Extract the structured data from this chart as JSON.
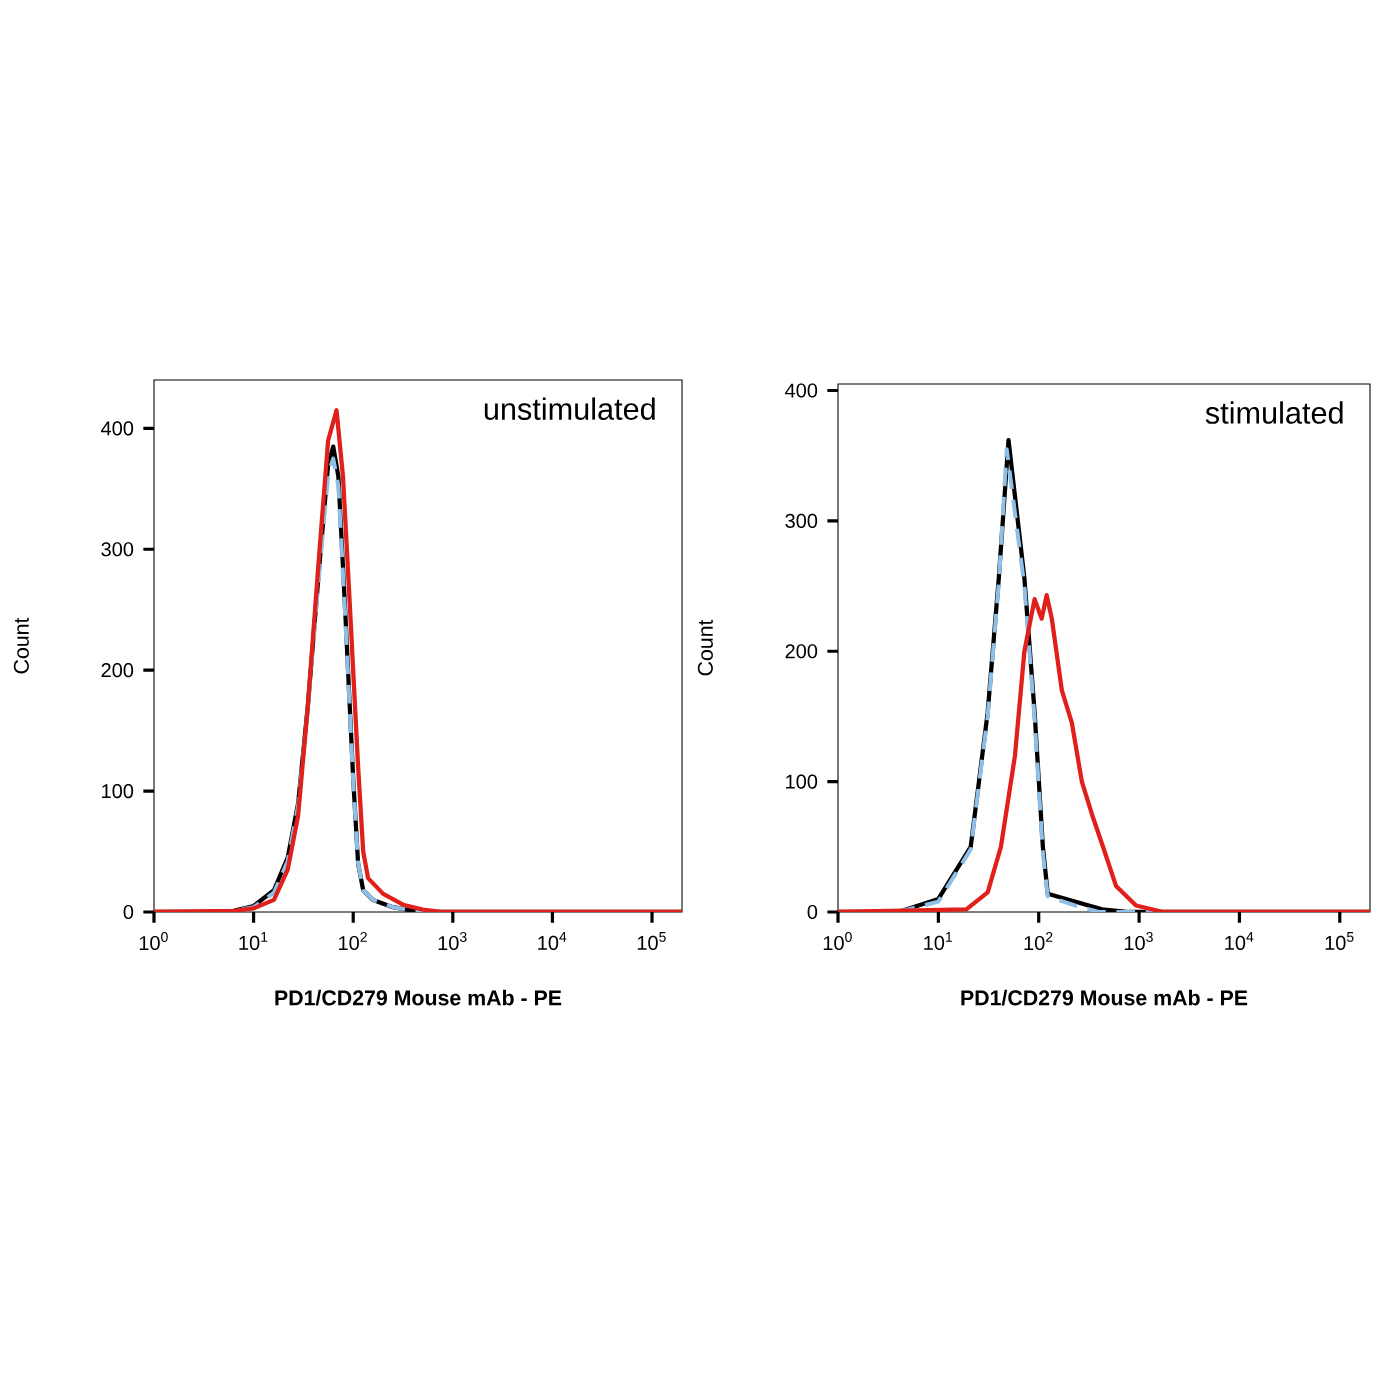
{
  "chart_data": [
    {
      "type": "line",
      "xlabel": "PD1/CD279 Mouse mAb - PE",
      "ylabel": "Count",
      "annotations": [
        "unstimulated"
      ],
      "log": "x",
      "grid": false,
      "marker": "none",
      "xlim": [
        1,
        200000
      ],
      "ylim": [
        0,
        440
      ],
      "xticks": [
        {
          "value": 1,
          "label": "10$^{0}$"
        },
        {
          "value": 10,
          "label": "10$^{1}$"
        },
        {
          "value": 100,
          "label": "10$^{2}$"
        },
        {
          "value": 1000,
          "label": "10$^{3}$"
        },
        {
          "value": 10000,
          "label": "10$^{4}$"
        },
        {
          "value": 100000,
          "label": "10$^{5}$"
        }
      ],
      "yticks": [
        0,
        100,
        200,
        300,
        400
      ],
      "series": [
        {
          "color": "#000000",
          "line_style": "solid",
          "x": [
            1,
            3.2,
            6.3,
            10,
            16,
            22,
            28,
            35,
            45,
            56,
            63,
            71,
            83,
            100,
            112,
            126,
            158,
            251,
            398,
            631,
            200000
          ],
          "values": [
            0,
            0,
            1,
            5,
            18,
            45,
            90,
            170,
            280,
            370,
            385,
            360,
            250,
            110,
            40,
            18,
            10,
            4,
            1,
            0,
            0
          ]
        },
        {
          "color": "#8fbfe6",
          "line_style": "dashed",
          "x": [
            1,
            3.2,
            6.3,
            10,
            16,
            22,
            28,
            35,
            45,
            56,
            63,
            71,
            83,
            100,
            112,
            126,
            158,
            251,
            398,
            631,
            200000
          ],
          "values": [
            0,
            0,
            1,
            4,
            16,
            42,
            88,
            168,
            275,
            362,
            375,
            352,
            245,
            108,
            40,
            18,
            10,
            4,
            1,
            0,
            0
          ]
        },
        {
          "color": "#e0201b",
          "line_style": "solid",
          "x": [
            1,
            6.3,
            10,
            16,
            22,
            28,
            35,
            45,
            56,
            68,
            79,
            93,
            112,
            126,
            141,
            200,
            316,
            501,
            794,
            200000
          ],
          "values": [
            0,
            1,
            3,
            10,
            35,
            80,
            170,
            290,
            390,
            415,
            360,
            250,
            120,
            50,
            28,
            15,
            6,
            2,
            0,
            0
          ]
        }
      ]
    },
    {
      "type": "line",
      "xlabel": "PD1/CD279 Mouse mAb - PE",
      "ylabel": "Count",
      "annotations": [
        "stimulated"
      ],
      "log": "x",
      "grid": false,
      "marker": "none",
      "xlim": [
        1,
        200000
      ],
      "ylim": [
        0,
        405
      ],
      "xticks": [
        {
          "value": 1,
          "label": "10$^{0}$"
        },
        {
          "value": 10,
          "label": "10$^{1}$"
        },
        {
          "value": 100,
          "label": "10$^{2}$"
        },
        {
          "value": 1000,
          "label": "10$^{3}$"
        },
        {
          "value": 10000,
          "label": "10$^{4}$"
        },
        {
          "value": 100000,
          "label": "10$^{5}$"
        }
      ],
      "yticks": [
        0,
        100,
        200,
        300,
        400
      ],
      "series": [
        {
          "color": "#000000",
          "line_style": "solid",
          "x": [
            1,
            4,
            10,
            21,
            31,
            40,
            50,
            72,
            91,
            110,
            123,
            229,
            427,
            794,
            200000
          ],
          "values": [
            0,
            0,
            10,
            50,
            153,
            256,
            362,
            256,
            153,
            50,
            14,
            8,
            2,
            0,
            0
          ]
        },
        {
          "color": "#8fbfe6",
          "line_style": "dashed",
          "x": [
            1,
            4,
            10,
            21,
            31,
            40,
            48,
            72,
            91,
            110,
            123,
            229,
            398,
            200000
          ],
          "values": [
            0,
            0,
            8,
            48,
            150,
            252,
            355,
            250,
            148,
            45,
            12,
            5,
            0,
            0
          ]
        },
        {
          "color": "#e0201b",
          "line_style": "solid",
          "x": [
            1,
            19,
            31,
            42,
            58,
            72,
            91,
            107,
            120,
            135,
            170,
            214,
            269,
            339,
            437,
            589,
            933,
            1738,
            200000
          ],
          "values": [
            0,
            2,
            15,
            50,
            120,
            200,
            240,
            225,
            243,
            225,
            170,
            145,
            100,
            75,
            50,
            20,
            5,
            0,
            0
          ]
        }
      ]
    }
  ]
}
